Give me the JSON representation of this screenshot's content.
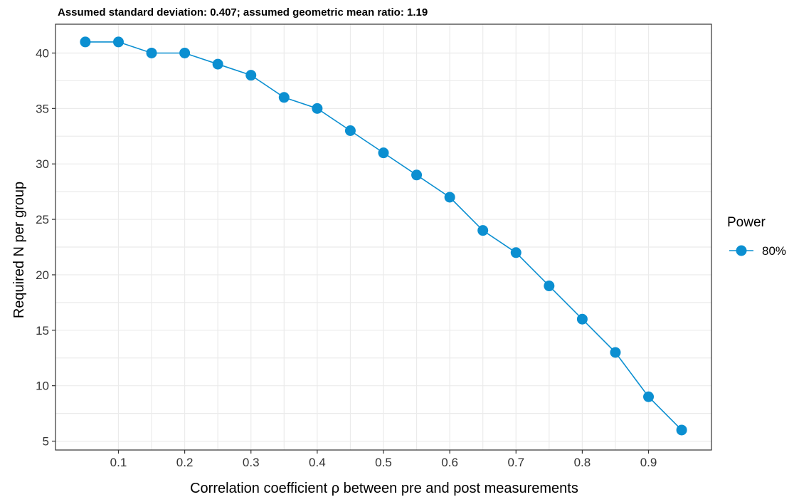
{
  "chart_data": {
    "type": "line",
    "title": "Assumed standard deviation: 0.407; assumed geometric mean ratio: 1.19",
    "xlabel": "Correlation coefficient ρ between pre and post measurements",
    "ylabel": "Required N per group",
    "xlim": [
      0.005,
      0.995
    ],
    "ylim": [
      4.2,
      42.6
    ],
    "x_ticks": [
      0.1,
      0.2,
      0.3,
      0.4,
      0.5,
      0.6,
      0.7,
      0.8,
      0.9
    ],
    "x_tick_labels": [
      "0.1",
      "0.2",
      "0.3",
      "0.4",
      "0.5",
      "0.6",
      "0.7",
      "0.8",
      "0.9"
    ],
    "y_ticks": [
      5,
      10,
      15,
      20,
      25,
      30,
      35,
      40
    ],
    "y_tick_labels": [
      "5",
      "10",
      "15",
      "20",
      "25",
      "30",
      "35",
      "40"
    ],
    "grid": true,
    "legend": {
      "title": "Power",
      "position": "right"
    },
    "series": [
      {
        "name": "80%",
        "color": "#0b8fd1",
        "x": [
          0.05,
          0.1,
          0.15,
          0.2,
          0.25,
          0.3,
          0.35,
          0.4,
          0.45,
          0.5,
          0.55,
          0.6,
          0.65,
          0.7,
          0.75,
          0.8,
          0.85,
          0.9,
          0.95
        ],
        "values": [
          41,
          41,
          40,
          40,
          39,
          38,
          36,
          35,
          33,
          31,
          29,
          27,
          24,
          22,
          19,
          16,
          13,
          9,
          6
        ]
      }
    ]
  }
}
